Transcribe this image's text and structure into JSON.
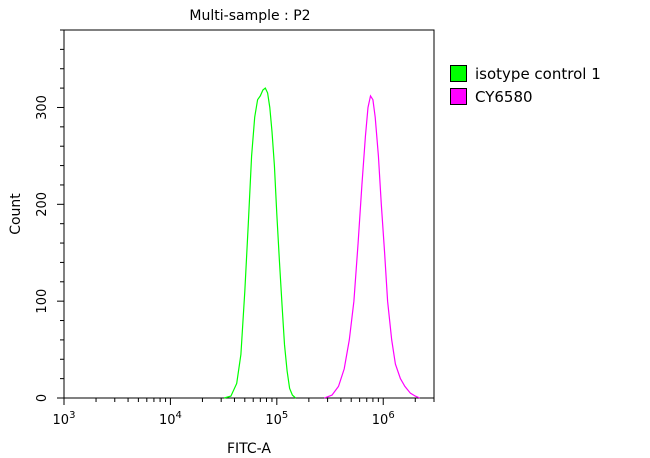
{
  "chart_data": {
    "type": "area",
    "title": "Multi-sample : P2",
    "xlabel": "FITC-A",
    "ylabel": "Count",
    "x_scale": "log",
    "xlim": [
      1000,
      3000000
    ],
    "ylim": [
      0,
      380
    ],
    "x_ticks": [
      {
        "label": "10",
        "exp": "3",
        "value": 1000
      },
      {
        "label": "10",
        "exp": "4",
        "value": 10000
      },
      {
        "label": "10",
        "exp": "5",
        "value": 100000
      },
      {
        "label": "10",
        "exp": "6",
        "value": 1000000
      }
    ],
    "y_ticks": [
      0,
      100,
      200,
      300
    ],
    "legend_position": "right",
    "series": [
      {
        "name": "isotype control 1",
        "color": "#00ff00",
        "points": [
          [
            32000,
            0
          ],
          [
            37000,
            2
          ],
          [
            42000,
            15
          ],
          [
            46000,
            45
          ],
          [
            50000,
            110
          ],
          [
            54000,
            180
          ],
          [
            58000,
            250
          ],
          [
            62000,
            290
          ],
          [
            66000,
            308
          ],
          [
            70000,
            312
          ],
          [
            74000,
            318
          ],
          [
            78000,
            320
          ],
          [
            82000,
            315
          ],
          [
            86000,
            300
          ],
          [
            90000,
            275
          ],
          [
            95000,
            240
          ],
          [
            100000,
            190
          ],
          [
            106000,
            140
          ],
          [
            112000,
            95
          ],
          [
            118000,
            55
          ],
          [
            125000,
            28
          ],
          [
            132000,
            10
          ],
          [
            140000,
            3
          ],
          [
            150000,
            0
          ]
        ]
      },
      {
        "name": "CY6580",
        "color": "#ff00ff",
        "points": [
          [
            280000,
            0
          ],
          [
            330000,
            3
          ],
          [
            380000,
            12
          ],
          [
            430000,
            30
          ],
          [
            480000,
            60
          ],
          [
            530000,
            100
          ],
          [
            580000,
            160
          ],
          [
            630000,
            220
          ],
          [
            680000,
            270
          ],
          [
            720000,
            300
          ],
          [
            760000,
            312
          ],
          [
            800000,
            308
          ],
          [
            840000,
            290
          ],
          [
            900000,
            250
          ],
          [
            960000,
            200
          ],
          [
            1030000,
            150
          ],
          [
            1100000,
            100
          ],
          [
            1200000,
            60
          ],
          [
            1300000,
            35
          ],
          [
            1450000,
            20
          ],
          [
            1600000,
            12
          ],
          [
            1800000,
            5
          ],
          [
            2000000,
            2
          ],
          [
            2200000,
            0
          ]
        ]
      }
    ]
  }
}
